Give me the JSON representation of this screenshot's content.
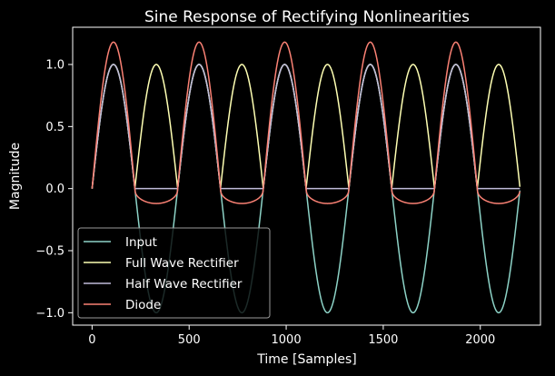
{
  "chart_data": {
    "type": "line",
    "title": "Sine Response of Rectifying Nonlinearities",
    "xlabel": "Time [Samples]",
    "ylabel": "Magnitude",
    "xlim": [
      -100,
      2310
    ],
    "ylim": [
      -1.1,
      1.3
    ],
    "xticks": [
      0,
      500,
      1000,
      1500,
      2000
    ],
    "yticks": [
      -1.0,
      -0.5,
      0.0,
      0.5,
      1.0
    ],
    "xtick_labels": [
      "0",
      "500",
      "1000",
      "1500",
      "2000"
    ],
    "ytick_labels": [
      "−1.0",
      "−0.5",
      "0.0",
      "0.5",
      "1.0"
    ],
    "grid": false,
    "legend_position": "lower-left",
    "samples": 2205,
    "period_samples": 441,
    "series": [
      {
        "name": "Input",
        "color": "#8dd3c7",
        "kind": "sine"
      },
      {
        "name": "Full Wave Rectifier",
        "color": "#feffb3",
        "kind": "abs"
      },
      {
        "name": "Half Wave Rectifier",
        "color": "#bfbbd9",
        "kind": "relu"
      },
      {
        "name": "Diode",
        "color": "#fa8174",
        "kind": "diode"
      }
    ],
    "diode_peak": 1.18,
    "diode_trough": -0.12
  }
}
